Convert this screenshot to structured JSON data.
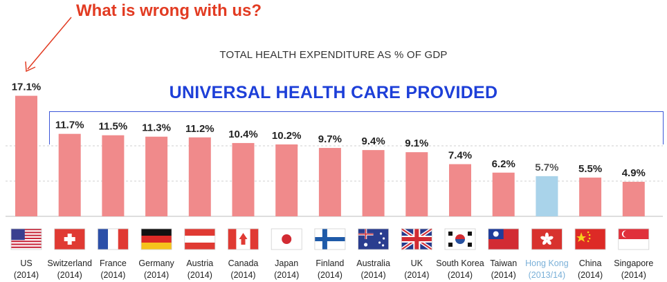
{
  "annotation": "What is wrong with us?",
  "chart_data": {
    "type": "bar",
    "title": "TOTAL HEALTH EXPENDITURE AS % OF GDP",
    "group_label": "UNIVERSAL HEALTH CARE PROVIDED",
    "categories": [
      "US",
      "Switzerland",
      "France",
      "Germany",
      "Austria",
      "Canada",
      "Japan",
      "Finland",
      "Australia",
      "UK",
      "South Korea",
      "Taiwan",
      "Hong Kong",
      "China",
      "Singapore"
    ],
    "years": [
      "(2014)",
      "(2014)",
      "(2014)",
      "(2014)",
      "(2014)",
      "(2014)",
      "(2014)",
      "(2014)",
      "(2014)",
      "(2014)",
      "(2014)",
      "(2014)",
      "(2013/14)",
      "(2014)",
      "(2014)"
    ],
    "values": [
      17.1,
      11.7,
      11.5,
      11.3,
      11.2,
      10.4,
      10.2,
      9.7,
      9.4,
      9.1,
      7.4,
      6.2,
      5.7,
      5.5,
      4.9
    ],
    "value_labels": [
      "17.1%",
      "11.7%",
      "11.5%",
      "11.3%",
      "11.2%",
      "10.4%",
      "10.2%",
      "9.7%",
      "9.4%",
      "9.1%",
      "7.4%",
      "6.2%",
      "5.7%",
      "5.5%",
      "4.9%"
    ],
    "unit": "% of GDP",
    "grid": true,
    "colors": {
      "bar": "#f08a8b",
      "highlight_bar": "#a9d3ea",
      "highlight_label": "#7ab0d8",
      "label": "#222222",
      "annotation": "#e23b22",
      "group": "#1d3fd8"
    },
    "highlight_index": 12,
    "flag_icons": [
      "us-flag-icon",
      "switzerland-flag-icon",
      "france-flag-icon",
      "germany-flag-icon",
      "austria-flag-icon",
      "canada-flag-icon",
      "japan-flag-icon",
      "finland-flag-icon",
      "australia-flag-icon",
      "uk-flag-icon",
      "south-korea-flag-icon",
      "taiwan-flag-icon",
      "hong-kong-flag-icon",
      "china-flag-icon",
      "singapore-flag-icon"
    ]
  }
}
